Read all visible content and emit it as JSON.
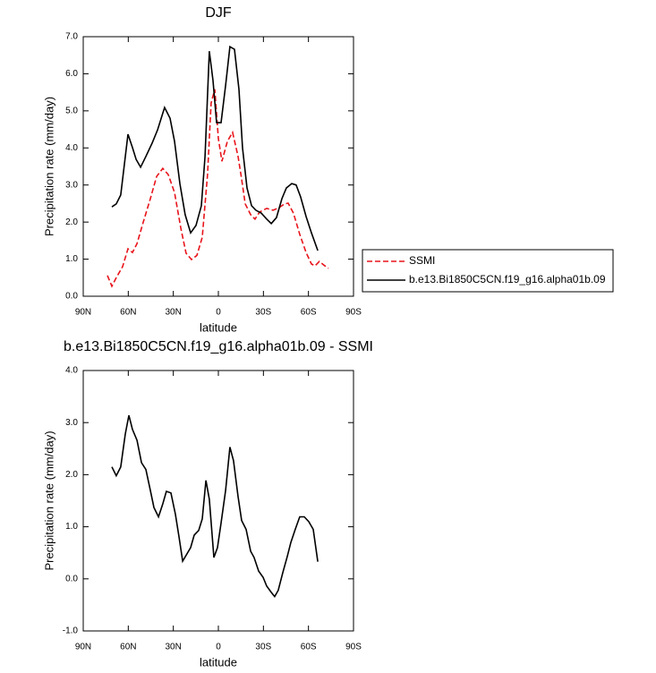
{
  "chart_data": [
    {
      "type": "line",
      "title": "DJF",
      "xlabel": "latitude",
      "ylabel": "Precipitation rate (mm/day)",
      "xlim": [
        90,
        -90
      ],
      "xticks": [
        {
          "value": 90,
          "label": "90N"
        },
        {
          "value": 60,
          "label": "60N"
        },
        {
          "value": 30,
          "label": "30N"
        },
        0,
        {
          "value": -30,
          "label": "30S"
        },
        {
          "value": -60,
          "label": "60S"
        },
        {
          "value": -90,
          "label": "90S"
        }
      ],
      "ylim": [
        0,
        7
      ],
      "yticks": [
        {
          "value": 0,
          "label": "0.0"
        },
        {
          "value": 1,
          "label": "1.0"
        },
        {
          "value": 2,
          "label": "2.0"
        },
        {
          "value": 3,
          "label": "3.0"
        },
        {
          "value": 4,
          "label": "4.0"
        },
        {
          "value": 5,
          "label": "5.0"
        },
        {
          "value": 6,
          "label": "6.0"
        },
        {
          "value": 7,
          "label": "7.0"
        }
      ],
      "legend": "right",
      "series": [
        {
          "name": "SSMI",
          "color": "#e8141b",
          "dash": true,
          "x": [
            73.9,
            70.9,
            68,
            63.8,
            60.2,
            57.2,
            54.2,
            50,
            45.3,
            41.1,
            37,
            33.4,
            29.2,
            25,
            21.5,
            17.9,
            14.3,
            10.7,
            7.2,
            4.8,
            2.4,
            0,
            -2.4,
            -6,
            -9.5,
            -13.1,
            -15.5,
            -17.9,
            -21.5,
            -24.4,
            -27.4,
            -32.2,
            -36.4,
            -40.5,
            -44.1,
            -46.5,
            -50,
            -54.2,
            -58.4,
            -62,
            -64.4,
            -67.3,
            -70.3,
            -73.3
          ],
          "values": [
            0.56,
            0.27,
            0.5,
            0.8,
            1.28,
            1.18,
            1.42,
            2.0,
            2.63,
            3.23,
            3.45,
            3.28,
            2.8,
            1.83,
            1.16,
            0.99,
            1.1,
            1.59,
            3.28,
            5.21,
            5.58,
            4.25,
            3.64,
            4.18,
            4.42,
            3.77,
            3.16,
            2.49,
            2.2,
            2.08,
            2.27,
            2.37,
            2.32,
            2.39,
            2.49,
            2.51,
            2.24,
            1.67,
            1.18,
            0.87,
            0.82,
            0.94,
            0.84,
            0.75
          ]
        },
        {
          "name": "b.e13.Bi1850C5CN.f19_g16.alpha01b.09",
          "color": "#000000",
          "dash": false,
          "x": [
            70.9,
            68,
            65,
            60.2,
            57.2,
            54.8,
            51.8,
            48.3,
            44.1,
            40.5,
            35.8,
            32.2,
            29.2,
            25.6,
            22.1,
            18.5,
            14.9,
            11.3,
            8.9,
            6,
            3.6,
            1.2,
            -1.8,
            -4.8,
            -7.7,
            -10.7,
            -13.7,
            -16.1,
            -19.1,
            -22.1,
            -25,
            -28.6,
            -32.2,
            -35.2,
            -38.7,
            -42.3,
            -45.3,
            -48.9,
            -51.8,
            -54.8,
            -58.4,
            -62,
            -66.2
          ],
          "values": [
            2.41,
            2.49,
            2.73,
            4.37,
            4.01,
            3.69,
            3.48,
            3.77,
            4.13,
            4.49,
            5.09,
            4.8,
            4.18,
            3.04,
            2.2,
            1.71,
            1.91,
            2.44,
            3.77,
            6.61,
            5.82,
            4.68,
            4.68,
            5.69,
            6.73,
            6.66,
            5.58,
            4.0,
            2.92,
            2.44,
            2.32,
            2.24,
            2.08,
            1.96,
            2.12,
            2.63,
            2.92,
            3.04,
            3.0,
            2.68,
            2.15,
            1.71,
            1.23
          ]
        }
      ]
    },
    {
      "type": "line",
      "title": "b.e13.Bi1850C5CN.f19_g16.alpha01b.09 - SSMI",
      "xlabel": "latitude",
      "ylabel": "Precipitation rate (mm/day)",
      "xlim": [
        90,
        -90
      ],
      "xticks": [
        {
          "value": 90,
          "label": "90N"
        },
        {
          "value": 60,
          "label": "60N"
        },
        {
          "value": 30,
          "label": "30N"
        },
        0,
        {
          "value": -30,
          "label": "30S"
        },
        {
          "value": -60,
          "label": "60S"
        },
        {
          "value": -90,
          "label": "90S"
        }
      ],
      "ylim": [
        -1,
        4
      ],
      "yticks": [
        {
          "value": -1,
          "label": "-1.0"
        },
        {
          "value": 0,
          "label": "0.0"
        },
        {
          "value": 1,
          "label": "1.0"
        },
        {
          "value": 2,
          "label": "2.0"
        },
        {
          "value": 3,
          "label": "3.0"
        },
        {
          "value": 4,
          "label": "4.0"
        }
      ],
      "series": [
        {
          "color": "#000000",
          "dash": false,
          "x": [
            70.9,
            68,
            65,
            62,
            59.6,
            57.2,
            54.2,
            51.2,
            48.3,
            45.3,
            42.9,
            39.9,
            37,
            34.6,
            31.6,
            28.6,
            26.2,
            23.8,
            20.9,
            18.5,
            16.1,
            13.1,
            10.7,
            8.3,
            6,
            3,
            0.6,
            -1.8,
            -4.8,
            -7.7,
            -10.1,
            -13.1,
            -15.5,
            -18.5,
            -21.5,
            -23.8,
            -26.8,
            -29.8,
            -32.2,
            -35.2,
            -37.5,
            -39.9,
            -42.9,
            -45.9,
            -48.3,
            -51.2,
            -54.2,
            -57.2,
            -60.2,
            -63.2,
            -66.2
          ],
          "values": [
            2.15,
            1.98,
            2.15,
            2.78,
            3.14,
            2.87,
            2.66,
            2.23,
            2.1,
            1.7,
            1.37,
            1.19,
            1.44,
            1.68,
            1.65,
            1.24,
            0.81,
            0.34,
            0.48,
            0.6,
            0.84,
            0.93,
            1.15,
            1.89,
            1.53,
            0.41,
            0.6,
            1.07,
            1.7,
            2.53,
            2.27,
            1.58,
            1.12,
            0.95,
            0.53,
            0.41,
            0.15,
            0.03,
            -0.14,
            -0.26,
            -0.34,
            -0.22,
            0.12,
            0.43,
            0.7,
            0.95,
            1.19,
            1.19,
            1.1,
            0.95,
            0.33
          ]
        }
      ]
    }
  ]
}
